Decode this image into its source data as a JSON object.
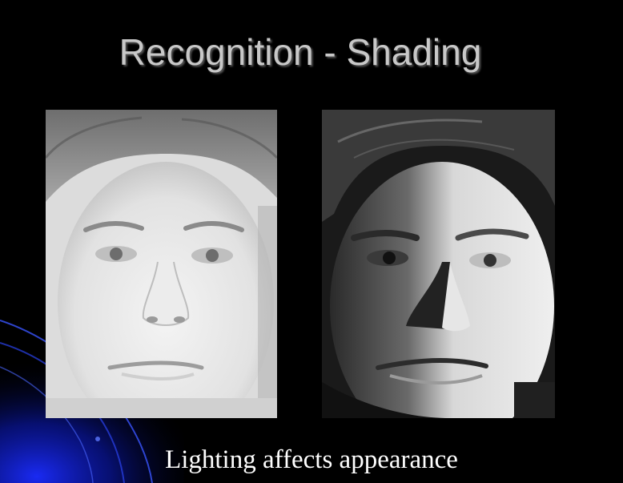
{
  "slide": {
    "title": "Recognition - Shading",
    "caption": "Lighting affects appearance",
    "accent_color": "#1a2cff",
    "background_color": "#000000"
  },
  "images": [
    {
      "name": "face-evenly-lit",
      "lighting": "frontal"
    },
    {
      "name": "face-side-lit",
      "lighting": "side"
    }
  ]
}
